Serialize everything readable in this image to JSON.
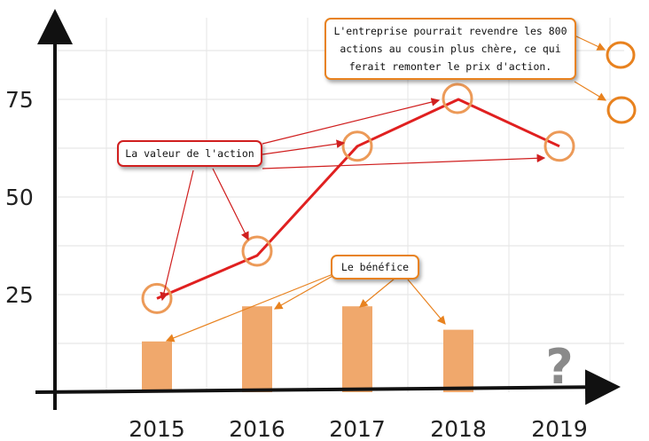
{
  "chart_data": {
    "type": "bar+line",
    "categories": [
      "2015",
      "2016",
      "2017",
      "2018",
      "2019"
    ],
    "y_ticks": [
      "25",
      "50",
      "75"
    ],
    "ylim": [
      0,
      100
    ],
    "grid": "horizontal",
    "series": [
      {
        "kind": "bar",
        "values": [
          13,
          22,
          22,
          16,
          null
        ],
        "color": "#f0a86c"
      },
      {
        "kind": "line",
        "values": [
          24,
          35,
          63,
          75,
          63
        ],
        "color": "#e02020"
      }
    ],
    "missing_marker": "?",
    "highlight_circle_color": "#ec9a58"
  },
  "annotations": {
    "valeur": "La valeur de l'action",
    "benefice": "Le bénéfice",
    "note": "L'entreprise pourrait revendre les 800 actions au cousin plus chère, ce qui ferait remonter le prix d'action."
  }
}
